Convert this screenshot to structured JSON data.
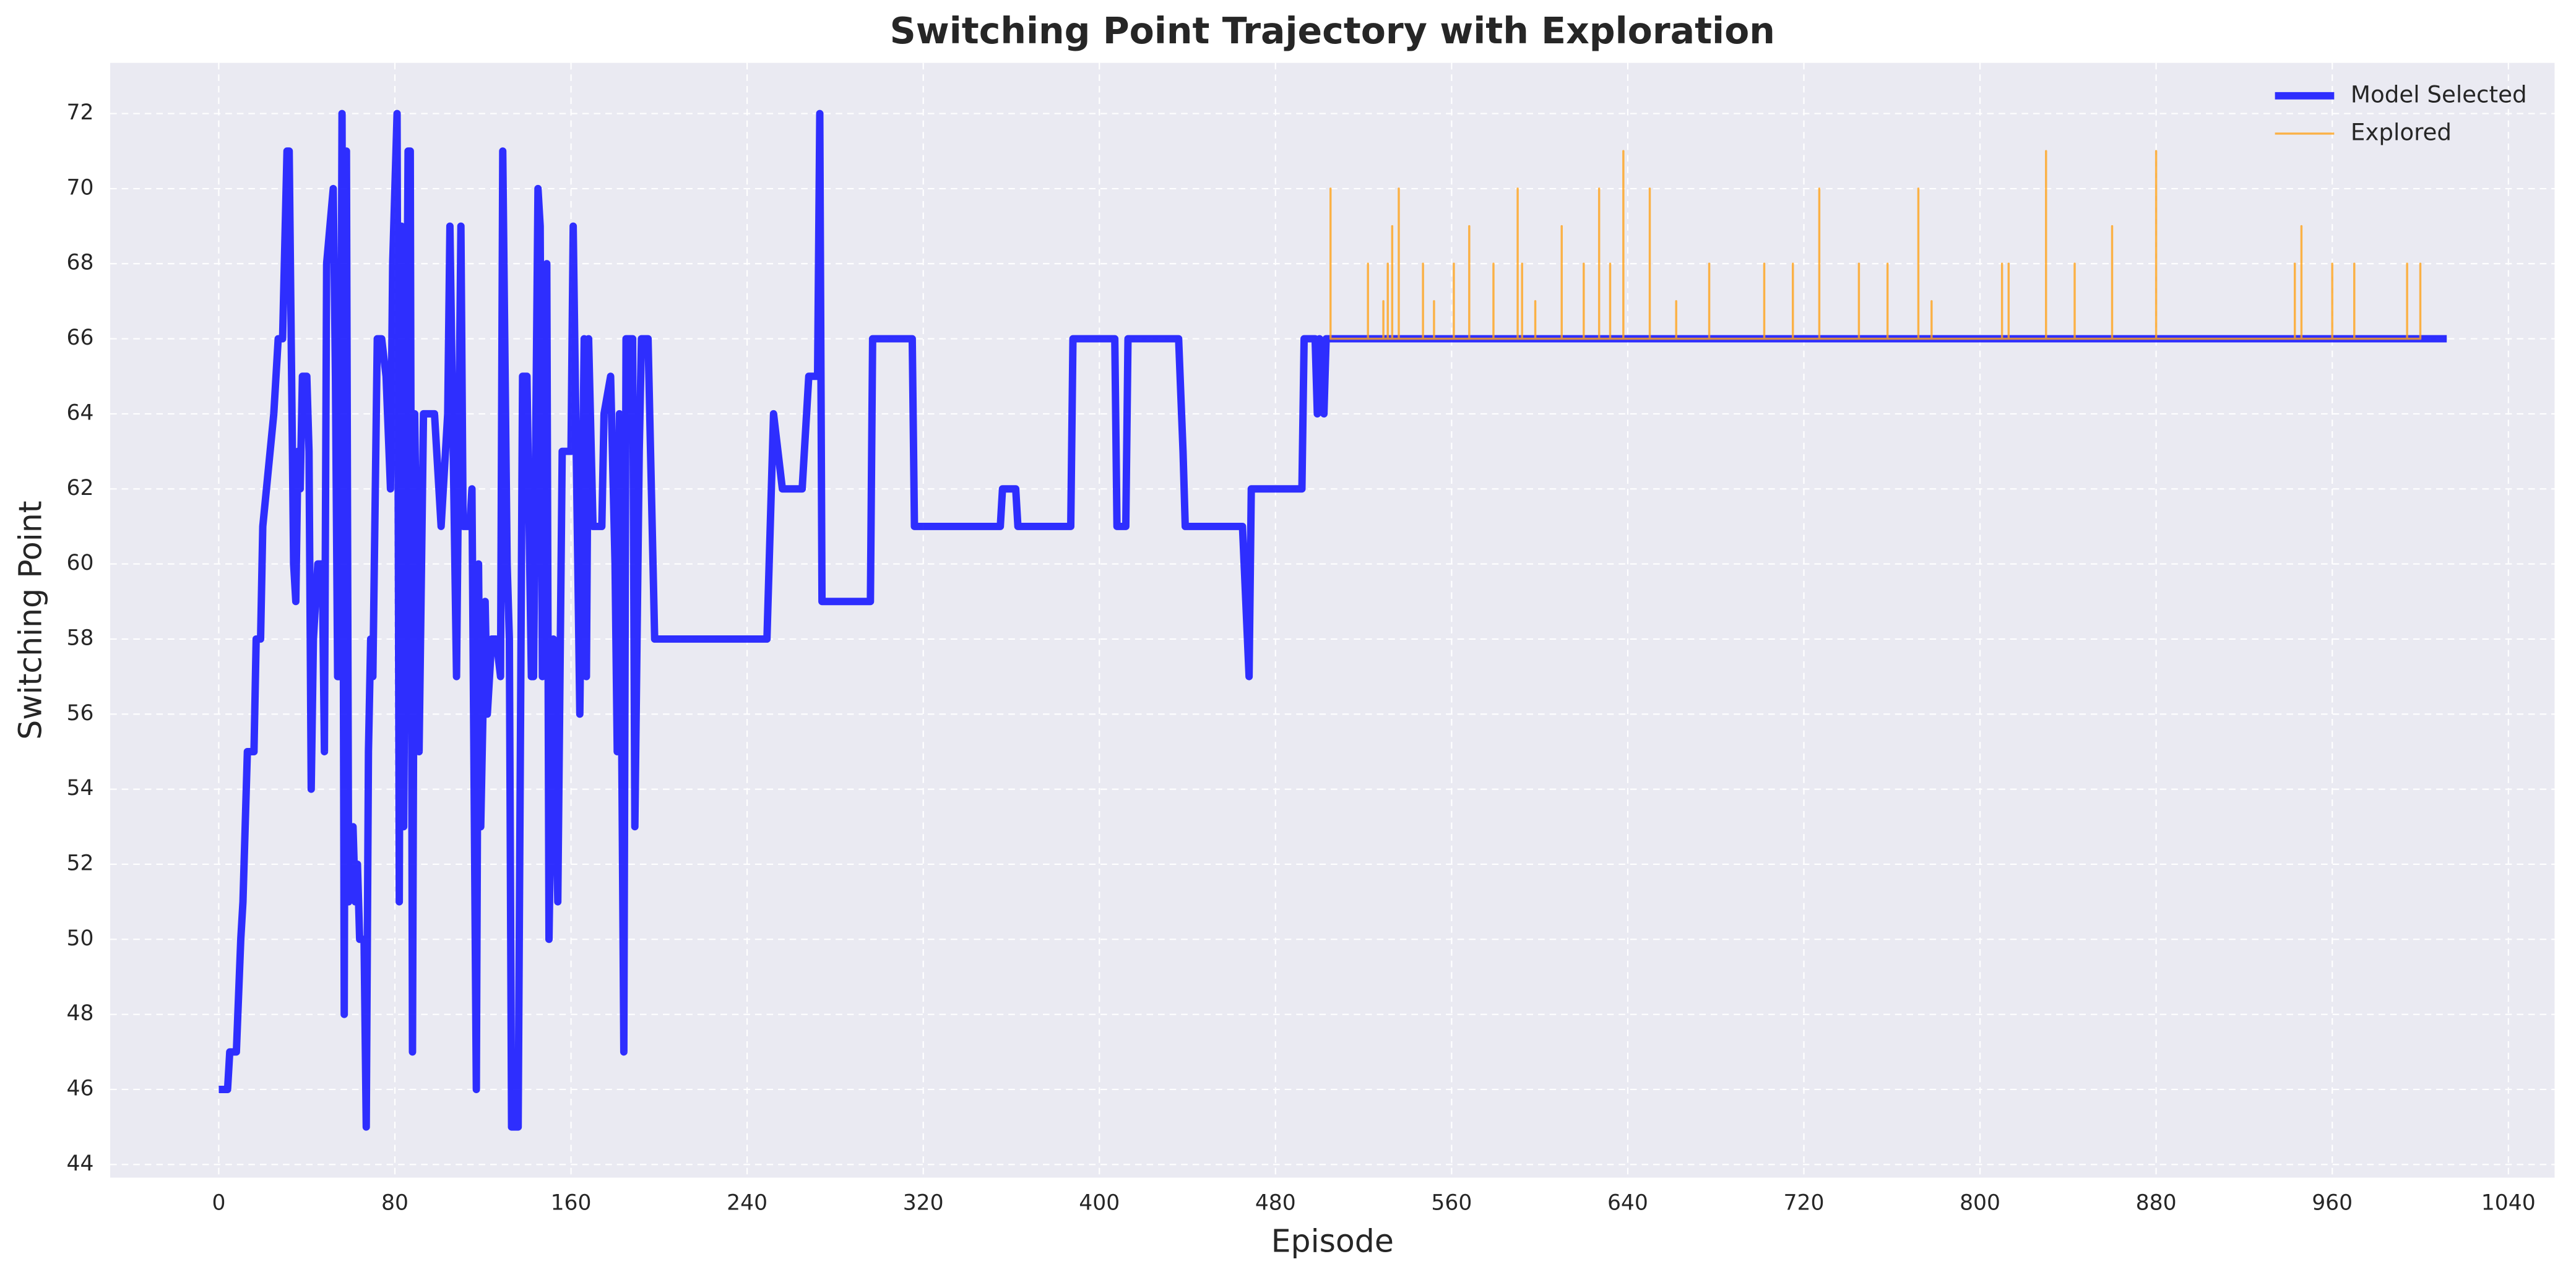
{
  "chart_data": {
    "type": "line",
    "title": "Switching Point Trajectory with Exploration",
    "x_label": "Episode",
    "y_label": "Switching Point",
    "xlim": [
      -49.3,
      1061
    ],
    "ylim": [
      43.65,
      73.35
    ],
    "xticks": [
      0,
      80,
      160,
      240,
      320,
      400,
      480,
      560,
      640,
      720,
      800,
      880,
      960,
      1040
    ],
    "yticks": [
      44,
      46,
      48,
      50,
      52,
      54,
      56,
      58,
      60,
      62,
      64,
      66,
      68,
      70,
      72
    ],
    "grid": true,
    "legend": "upper right",
    "series": [
      {
        "name": "Model Selected",
        "color": "#1a1aff",
        "x": [
          0,
          4,
          5,
          8,
          10,
          11,
          13,
          16,
          17,
          19,
          20,
          25,
          27,
          29,
          31,
          32,
          34,
          35,
          36,
          37,
          38,
          40,
          41,
          42,
          43,
          45,
          47,
          48,
          49,
          52,
          53,
          54,
          55,
          56,
          57,
          58,
          59,
          61,
          62,
          63,
          64,
          66,
          67,
          68,
          69,
          70,
          72,
          74,
          76,
          78,
          79,
          81,
          82,
          83,
          84,
          86,
          87,
          88,
          89,
          91,
          93,
          96,
          98,
          101,
          104,
          105,
          108,
          110,
          111,
          114,
          115,
          117,
          118,
          119,
          121,
          122,
          124,
          126,
          128,
          129,
          131,
          132,
          133,
          136,
          138,
          140,
          142,
          143,
          145,
          146,
          147,
          149,
          150,
          152,
          154,
          156,
          160,
          161,
          164,
          166,
          167,
          168,
          170,
          174,
          175,
          178,
          180,
          181,
          182,
          184,
          185,
          188,
          189,
          191,
          192,
          195,
          198,
          249,
          252,
          256,
          265,
          268,
          272,
          273,
          274,
          296,
          297,
          315,
          316,
          355,
          356,
          362,
          363,
          387,
          388,
          407,
          408,
          412,
          413,
          436,
          438,
          439,
          465,
          468,
          469,
          492,
          493,
          498,
          499,
          500,
          502,
          503,
          1012
        ],
        "values": [
          46,
          46,
          47,
          47,
          50,
          51,
          55,
          55,
          58,
          58,
          61,
          64,
          66,
          66,
          71,
          71,
          60,
          59,
          63,
          62,
          65,
          65,
          63,
          54,
          58,
          60,
          60,
          55,
          68,
          70,
          65,
          57,
          57,
          72,
          48,
          71,
          51,
          53,
          51,
          52,
          50,
          50,
          45,
          55,
          58,
          57,
          66,
          66,
          65,
          62,
          68,
          72,
          51,
          69,
          53,
          71,
          71,
          47,
          64,
          55,
          64,
          64,
          64,
          61,
          64,
          69,
          57,
          69,
          61,
          61,
          62,
          46,
          60,
          53,
          59,
          56,
          58,
          58,
          57,
          71,
          60,
          58,
          45,
          45,
          65,
          65,
          57,
          57,
          70,
          69,
          57,
          68,
          50,
          58,
          51,
          63,
          63,
          69,
          56,
          66,
          57,
          66,
          61,
          61,
          64,
          65,
          60,
          55,
          64,
          47,
          66,
          66,
          53,
          63,
          66,
          66,
          58,
          58,
          64,
          62,
          62,
          65,
          65,
          72,
          59,
          59,
          66,
          66,
          61,
          61,
          62,
          62,
          61,
          61,
          66,
          66,
          61,
          61,
          66,
          66,
          63,
          61,
          61,
          57,
          62,
          62,
          66,
          66,
          64,
          66,
          64,
          66,
          66
        ]
      },
      {
        "name": "Explored",
        "color": "#ffa31a",
        "x": [
          505,
          505,
          505,
          522,
          522,
          522,
          529,
          529,
          529,
          531,
          531,
          531,
          533,
          533,
          533,
          536,
          536,
          536,
          547,
          547,
          547,
          552,
          552,
          552,
          561,
          561,
          561,
          568,
          568,
          568,
          579,
          579,
          579,
          590,
          590,
          590,
          592,
          592,
          592,
          598,
          598,
          598,
          610,
          610,
          610,
          620,
          620,
          620,
          627,
          627,
          627,
          632,
          632,
          632,
          638,
          638,
          638,
          650,
          650,
          650,
          662,
          662,
          662,
          677,
          677,
          677,
          702,
          702,
          702,
          715,
          715,
          715,
          727,
          727,
          727,
          745,
          745,
          745,
          758,
          758,
          758,
          772,
          772,
          772,
          778,
          778,
          778,
          810,
          810,
          810,
          813,
          813,
          813,
          830,
          830,
          830,
          843,
          843,
          843,
          860,
          860,
          860,
          880,
          880,
          880,
          943,
          943,
          943,
          946,
          946,
          946,
          960,
          960,
          960,
          970,
          970,
          970,
          994,
          994,
          994,
          1000,
          1000,
          1000
        ],
        "values": [
          66,
          70,
          66,
          66,
          68,
          66,
          66,
          67,
          66,
          66,
          68,
          66,
          66,
          69,
          66,
          66,
          70,
          66,
          66,
          68,
          66,
          66,
          67,
          66,
          66,
          68,
          66,
          66,
          69,
          66,
          66,
          68,
          66,
          66,
          70,
          66,
          66,
          68,
          66,
          66,
          67,
          66,
          66,
          69,
          66,
          66,
          68,
          66,
          66,
          70,
          66,
          66,
          68,
          66,
          66,
          71,
          66,
          66,
          70,
          66,
          66,
          67,
          66,
          66,
          68,
          66,
          66,
          68,
          66,
          66,
          68,
          66,
          66,
          70,
          66,
          66,
          68,
          66,
          66,
          68,
          66,
          66,
          70,
          66,
          66,
          67,
          66,
          66,
          68,
          66,
          66,
          68,
          66,
          66,
          71,
          66,
          66,
          68,
          66,
          66,
          69,
          66,
          66,
          71,
          66,
          66,
          68,
          66,
          66,
          69,
          66,
          66,
          68,
          66,
          66,
          68,
          66,
          66,
          68,
          66,
          66,
          68,
          66
        ]
      }
    ]
  }
}
